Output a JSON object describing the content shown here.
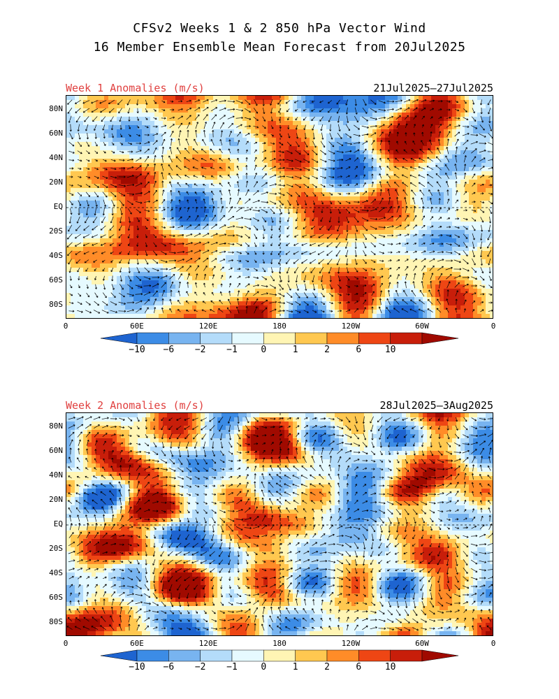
{
  "header": {
    "line1": "CFSv2 Weeks 1 & 2 850 hPa Vector Wind",
    "line2": "16 Member Ensemble Mean Forecast from 20Jul2025"
  },
  "panels": [
    {
      "label": "Week 1 Anomalies (m/s)",
      "dates": "21Jul2025–27Jul2025",
      "seed": 7
    },
    {
      "label": "Week 2 Anomalies (m/s)",
      "dates": "28Jul2025–3Aug2025",
      "seed": 23
    }
  ],
  "lat_labels": [
    "80N",
    "60N",
    "40N",
    "20N",
    "EQ",
    "20S",
    "40S",
    "60S",
    "80S"
  ],
  "lon_labels": [
    "0",
    "60E",
    "120E",
    "180",
    "120W",
    "60W",
    "0"
  ],
  "colorbar": {
    "labels": [
      "-10",
      "-6",
      "-2",
      "-1",
      "0",
      "1",
      "2",
      "6",
      "10"
    ],
    "colors": [
      "#1e64d0",
      "#3c8ce6",
      "#78b4f0",
      "#b4dcfa",
      "#e6faff",
      "#fff5b4",
      "#ffc850",
      "#ff8c28",
      "#ee4614",
      "#c81e0a",
      "#a00a00"
    ]
  }
}
